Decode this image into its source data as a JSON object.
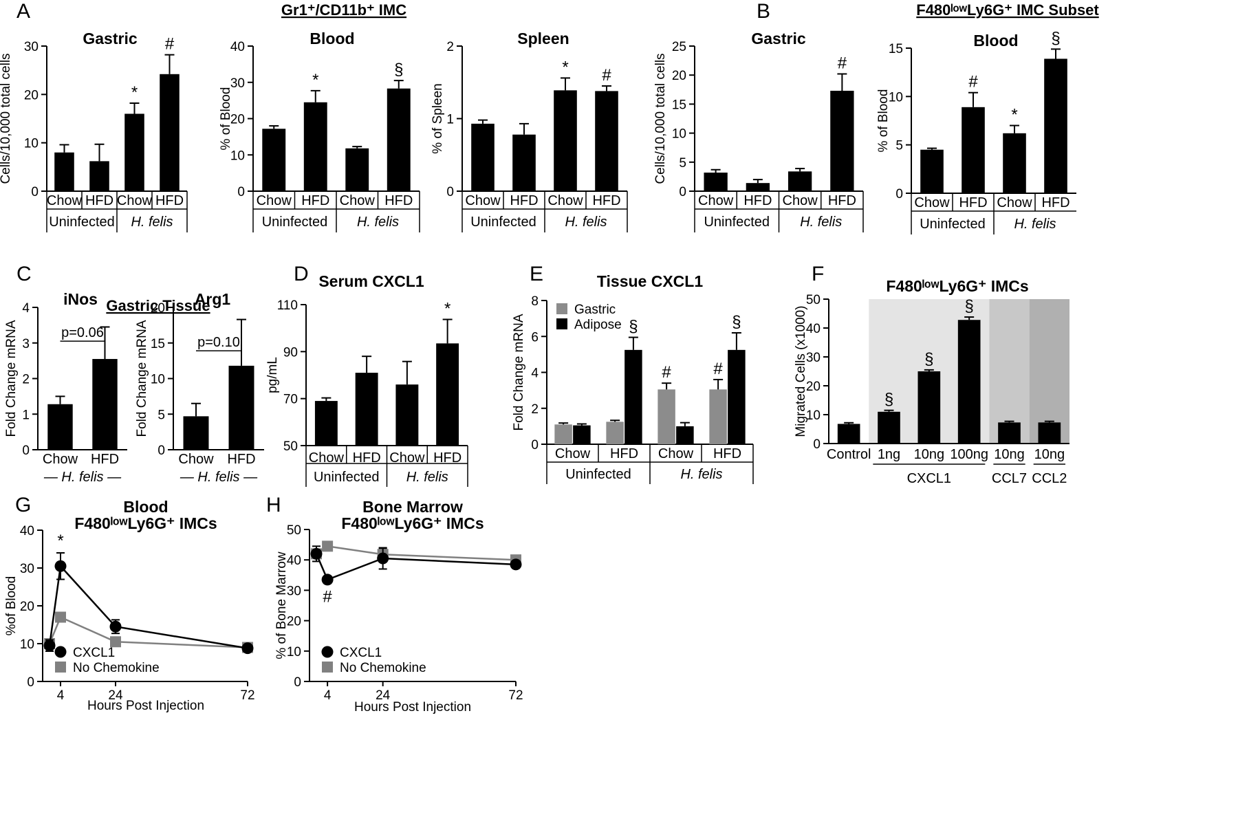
{
  "sections": {
    "a": {
      "title": "Gr1⁺/CD11b⁺ IMC"
    },
    "b": {
      "title": "F480ˡᵒʷLy6G⁺ IMC Subset"
    },
    "c": {
      "title": "Gastric Tissue"
    }
  },
  "chart_data": [
    {
      "id": "a1",
      "letter": "A",
      "type": "bar",
      "title": "Gastric",
      "ylabel": "Cells/10,000 total cells",
      "ylim": [
        0,
        30
      ],
      "yticks": [
        "0",
        "10",
        "20",
        "30"
      ],
      "categories": [
        "Chow",
        "HFD",
        "Chow",
        "HFD"
      ],
      "groups": [
        {
          "label": "Uninfected",
          "italic": false
        },
        {
          "label": "H. felis",
          "italic": true
        }
      ],
      "values": [
        8,
        6.2,
        16,
        24.2
      ],
      "errors": [
        1.6,
        3.5,
        2.2,
        4
      ],
      "annotations": [
        "",
        "",
        "*",
        "#"
      ]
    },
    {
      "id": "a2",
      "type": "bar",
      "title": "Blood",
      "ylabel": "% of Blood",
      "ylim": [
        0,
        40
      ],
      "yticks": [
        "0",
        "10",
        "20",
        "30",
        "40"
      ],
      "categories": [
        "Chow",
        "HFD",
        "Chow",
        "HFD"
      ],
      "groups": [
        {
          "label": "Uninfected",
          "italic": false
        },
        {
          "label": "H. felis",
          "italic": true
        }
      ],
      "values": [
        17.2,
        24.5,
        11.8,
        28.3
      ],
      "errors": [
        0.8,
        3.2,
        0.5,
        2.2
      ],
      "annotations": [
        "",
        "*",
        "",
        "§"
      ]
    },
    {
      "id": "a3",
      "type": "bar",
      "title": "Spleen",
      "ylabel": "% of Spleen",
      "ylim": [
        0,
        2
      ],
      "yticks": [
        "0",
        "1",
        "2"
      ],
      "categories": [
        "Chow",
        "HFD",
        "Chow",
        "HFD"
      ],
      "groups": [
        {
          "label": "Uninfected",
          "italic": false
        },
        {
          "label": "H. felis",
          "italic": true
        }
      ],
      "values": [
        0.93,
        0.78,
        1.39,
        1.38
      ],
      "errors": [
        0.05,
        0.15,
        0.17,
        0.07
      ],
      "annotations": [
        "",
        "",
        "*",
        "#"
      ]
    },
    {
      "id": "b1",
      "letter": "B",
      "type": "bar",
      "title": "Gastric",
      "ylabel": "Cells/10,000 total cells",
      "ylim": [
        0,
        25
      ],
      "yticks": [
        "0",
        "5",
        "10",
        "15",
        "20",
        "25"
      ],
      "categories": [
        "Chow",
        "HFD",
        "Chow",
        "HFD"
      ],
      "groups": [
        {
          "label": "Uninfected",
          "italic": false
        },
        {
          "label": "H. felis",
          "italic": true
        }
      ],
      "values": [
        3.2,
        1.4,
        3.4,
        17.3
      ],
      "errors": [
        0.5,
        0.6,
        0.5,
        2.9
      ],
      "annotations": [
        "",
        "",
        "",
        "#"
      ]
    },
    {
      "id": "b2",
      "type": "bar",
      "title": "Blood",
      "ylabel": "% of Blood",
      "ylim": [
        0,
        15
      ],
      "yticks": [
        "0",
        "5",
        "10",
        "15"
      ],
      "categories": [
        "Chow",
        "HFD",
        "Chow",
        "HFD"
      ],
      "groups": [
        {
          "label": "Uninfected",
          "italic": false
        },
        {
          "label": "H. felis",
          "italic": true
        }
      ],
      "values": [
        4.5,
        8.9,
        6.2,
        13.9
      ],
      "errors": [
        0.15,
        1.5,
        0.8,
        1.0
      ],
      "annotations": [
        "",
        "#",
        "*",
        "§"
      ]
    },
    {
      "id": "c1",
      "letter": "C",
      "type": "bar",
      "title": "iNos",
      "ylabel": "Fold Change mRNA",
      "ylim": [
        0,
        4
      ],
      "yticks": [
        "0",
        "1",
        "2",
        "3",
        "4"
      ],
      "categories": [
        "Chow",
        "HFD"
      ],
      "groups": [
        {
          "label": "— H. felis —",
          "italic": true
        }
      ],
      "values": [
        1.28,
        2.55
      ],
      "errors": [
        0.22,
        0.9
      ],
      "annotations": [
        "",
        ""
      ],
      "pvalue": "p=0.06",
      "pvalue_y": 3.05
    },
    {
      "id": "c2",
      "type": "bar",
      "title": "Arg1",
      "ylabel": "Fold Change mRNA",
      "ylim": [
        0,
        20
      ],
      "yticks": [
        "0",
        "5",
        "10",
        "15",
        "20"
      ],
      "categories": [
        "Chow",
        "HFD"
      ],
      "groups": [
        {
          "label": "— H. felis —",
          "italic": true
        }
      ],
      "values": [
        4.7,
        11.8
      ],
      "errors": [
        1.8,
        6.5
      ],
      "annotations": [
        "",
        ""
      ],
      "pvalue": "p=0.10",
      "pvalue_y": 13.9
    },
    {
      "id": "d",
      "letter": "D",
      "type": "bar",
      "title": "Serum CXCL1",
      "ylabel": "pg/mL",
      "ylim": [
        50,
        110
      ],
      "yticks": [
        "50",
        "70",
        "90",
        "110"
      ],
      "categories": [
        "Chow",
        "HFD",
        "Chow",
        "HFD"
      ],
      "groups": [
        {
          "label": "Uninfected",
          "italic": false
        },
        {
          "label": "H. felis",
          "italic": true
        }
      ],
      "values": [
        69,
        81,
        76,
        93.5
      ],
      "errors": [
        1.3,
        7,
        9.8,
        10.2
      ],
      "annotations": [
        "",
        "",
        "",
        "*"
      ]
    },
    {
      "id": "e",
      "letter": "E",
      "type": "bar",
      "title": "Tissue CXCL1",
      "ylabel": "Fold Change mRNA",
      "ylim": [
        0,
        8
      ],
      "yticks": [
        "0",
        "2",
        "4",
        "6",
        "8"
      ],
      "categories": [
        "Chow",
        "HFD",
        "Chow",
        "HFD"
      ],
      "groups": [
        {
          "label": "Uninfected",
          "italic": false
        },
        {
          "label": "H. felis",
          "italic": true
        }
      ],
      "series": [
        {
          "name": "Gastric",
          "color": "#8c8c8c",
          "values": [
            1.1,
            1.25,
            3.05,
            3.05
          ],
          "errors": [
            0.08,
            0.08,
            0.35,
            0.55
          ],
          "annotations": [
            "",
            "",
            "#",
            "#"
          ]
        },
        {
          "name": "Adipose",
          "color": "#000000",
          "values": [
            1.05,
            5.25,
            1.0,
            5.25
          ],
          "errors": [
            0.08,
            0.7,
            0.2,
            0.95
          ],
          "annotations": [
            "",
            "§",
            "",
            "§"
          ]
        }
      ],
      "legend": "top-left"
    },
    {
      "id": "f",
      "letter": "F",
      "type": "bar",
      "title": "F480ˡᵒʷLy6G⁺ IMCs",
      "ylabel": "Migrated Cells (x1000)",
      "ylim": [
        0,
        50
      ],
      "yticks": [
        "0",
        "10",
        "20",
        "30",
        "40",
        "50"
      ],
      "categories": [
        "Control",
        "1ng",
        "10ng",
        "100ng",
        "10ng",
        "10ng"
      ],
      "group_labels": [
        "CXCL1",
        "CCL7",
        "CCL2"
      ],
      "values": [
        6.8,
        11,
        25,
        42.8,
        7.3,
        7.3
      ],
      "errors": [
        0.4,
        0.5,
        0.5,
        1.0,
        0.4,
        0.4
      ],
      "annotations": [
        "",
        "§",
        "§",
        "§",
        "",
        ""
      ],
      "background_shading": [
        "#e4e4e4",
        "#c8c8c8",
        "#b0b0b0"
      ]
    },
    {
      "id": "g",
      "letter": "G",
      "type": "line",
      "title_lines": [
        "Blood",
        "F480ˡᵒʷLy6G⁺ IMCs"
      ],
      "ylabel": "%of Blood",
      "xlabel": "Hours Post Injection",
      "ylim": [
        0,
        40
      ],
      "xlim": [
        0,
        72
      ],
      "yticks": [
        "0",
        "10",
        "20",
        "30",
        "40"
      ],
      "xticks": [
        4,
        24,
        72
      ],
      "series": [
        {
          "name": "CXCL1",
          "color": "#000000",
          "x": [
            0,
            4,
            24,
            72
          ],
          "y": [
            9.5,
            30.5,
            14.5,
            8.8
          ],
          "errors": [
            1.5,
            3.5,
            1.8,
            0.8
          ]
        },
        {
          "name": "No Chemokine",
          "color": "#808080",
          "x": [
            0,
            4,
            24,
            72
          ],
          "y": [
            10,
            17,
            10.5,
            9
          ],
          "errors": [
            1.2,
            1.0,
            1.2,
            0.8
          ]
        }
      ],
      "annotations": [
        {
          "x": 4,
          "label": "*"
        }
      ],
      "legend": "bottom-left"
    },
    {
      "id": "h",
      "letter": "H",
      "type": "line",
      "title_lines": [
        "Bone Marrow",
        "F480ˡᵒʷLy6G⁺ IMCs"
      ],
      "ylabel": "% of Bone Marrow",
      "xlabel": "Hours Post Injection",
      "ylim": [
        0,
        50
      ],
      "xlim": [
        0,
        72
      ],
      "yticks": [
        "0",
        "10",
        "20",
        "30",
        "40",
        "50"
      ],
      "xticks": [
        4,
        24,
        72
      ],
      "series": [
        {
          "name": "CXCL1",
          "color": "#000000",
          "x": [
            0,
            4,
            24,
            72
          ],
          "y": [
            42,
            33.5,
            40.5,
            38.5
          ],
          "errors": [
            2.5,
            1.0,
            3.5,
            1.2
          ]
        },
        {
          "name": "No Chemokine",
          "color": "#808080",
          "x": [
            0,
            4,
            24,
            72
          ],
          "y": [
            42,
            44.5,
            41.8,
            40
          ],
          "errors": [
            1.5,
            0.8,
            2.0,
            1.5
          ]
        }
      ],
      "annotations": [
        {
          "x": 4,
          "label": "#"
        }
      ],
      "legend": "bottom-left"
    }
  ]
}
